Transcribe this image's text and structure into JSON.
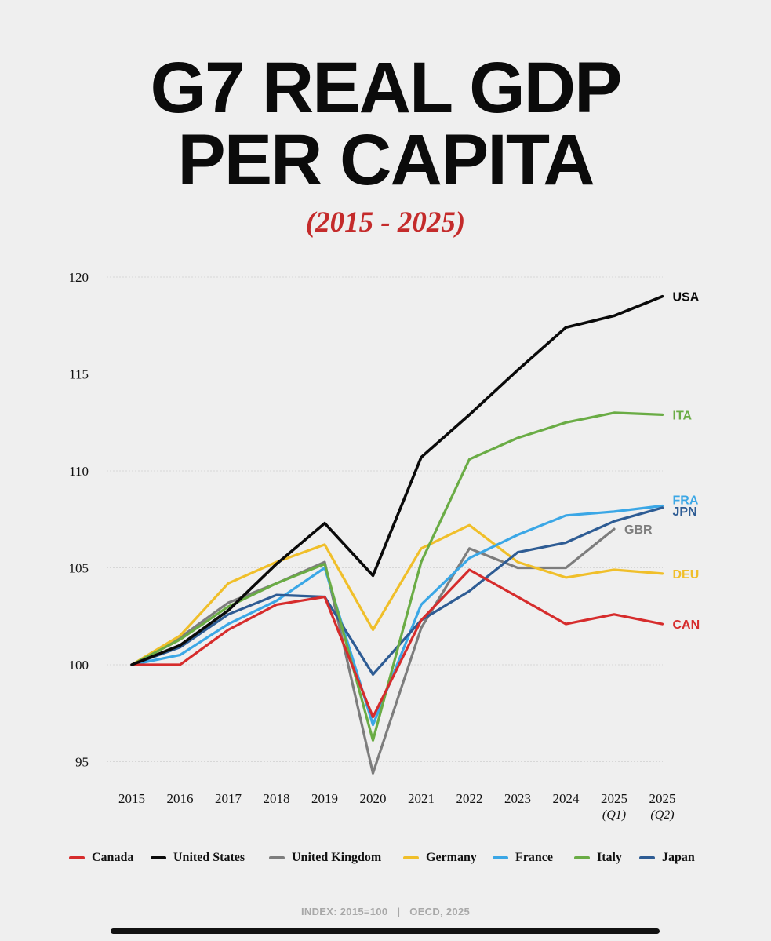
{
  "header": {
    "title_line1": "G7 REAL GDP",
    "title_line2": "PER CAPITA",
    "subtitle": "(2015 - 2025)"
  },
  "footer": {
    "index_note": "INDEX: 2015=100",
    "separator": "|",
    "source": "OECD, 2025"
  },
  "chart_data": {
    "type": "line",
    "title": "G7 REAL GDP PER CAPITA",
    "subtitle": "(2015 - 2025)",
    "x": [
      "2015",
      "2016",
      "2017",
      "2018",
      "2019",
      "2020",
      "2021",
      "2022",
      "2023",
      "2024",
      "2025",
      "2025"
    ],
    "x_sublabels": [
      "",
      "",
      "",
      "",
      "",
      "",
      "",
      "",
      "",
      "",
      "(Q1)",
      "(Q2)"
    ],
    "yticks": [
      95,
      100,
      105,
      110,
      115,
      120
    ],
    "ylim": [
      93.5,
      120
    ],
    "grid": "horizontal",
    "legend_position": "bottom",
    "series": [
      {
        "name": "Canada",
        "label": "CAN",
        "color": "#d62c2c",
        "values": [
          100,
          100,
          101.8,
          103.1,
          103.5,
          97.3,
          102.3,
          104.9,
          103.5,
          102.1,
          102.6,
          102.1
        ]
      },
      {
        "name": "United States",
        "label": "USA",
        "color": "#0a0a0a",
        "values": [
          100,
          101.0,
          102.8,
          105.2,
          107.3,
          104.6,
          110.7,
          112.9,
          115.2,
          117.4,
          118.0,
          119.0
        ]
      },
      {
        "name": "United Kingdom",
        "label": "GBR",
        "color": "#7d7d7d",
        "values": [
          100,
          101.4,
          103.2,
          104.2,
          105.3,
          94.4,
          101.9,
          106.0,
          105.0,
          105.0,
          107.0,
          null
        ]
      },
      {
        "name": "Germany",
        "label": "DEU",
        "color": "#f0bf2a",
        "values": [
          100,
          101.5,
          104.2,
          105.3,
          106.2,
          101.8,
          106.0,
          107.2,
          105.3,
          104.5,
          104.9,
          104.7
        ]
      },
      {
        "name": "France",
        "label": "FRA",
        "color": "#3ba7e6",
        "values": [
          100,
          100.5,
          102.1,
          103.3,
          105.0,
          96.9,
          103.1,
          105.5,
          106.7,
          107.7,
          107.9,
          108.2
        ]
      },
      {
        "name": "Italy",
        "label": "ITA",
        "color": "#6aac45",
        "values": [
          100,
          101.3,
          103.0,
          104.2,
          105.2,
          96.1,
          105.3,
          110.6,
          111.7,
          112.5,
          113.0,
          112.9
        ]
      },
      {
        "name": "Japan",
        "label": "JPN",
        "color": "#2e5c94",
        "values": [
          100,
          100.9,
          102.6,
          103.6,
          103.5,
          99.5,
          102.3,
          103.8,
          105.8,
          106.3,
          107.4,
          108.1
        ]
      }
    ]
  }
}
